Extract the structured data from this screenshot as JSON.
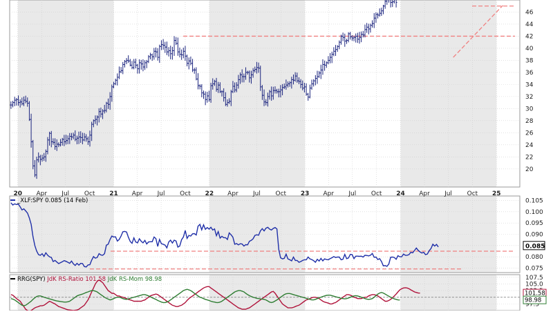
{
  "colors": {
    "price_bars": "#1a237e",
    "ratio_line": "#1f2fa8",
    "rs_ratio": "#b0123a",
    "rs_momentum": "#2e7d32",
    "support_lines": "#f08080",
    "shade": "#e9e9e9",
    "grid": "#cfcfcf",
    "axis_text": "#222222",
    "highlight_box": "#000000"
  },
  "chart_data": [
    {
      "type": "ohlc",
      "panel": "price",
      "ylim": [
        17,
        48
      ],
      "y_ticks": [
        "20",
        "22",
        "24",
        "26",
        "28",
        "30",
        "32",
        "34",
        "36",
        "38",
        "40",
        "42",
        "44",
        "46"
      ],
      "x_tick_labels": [
        "20",
        "Apr",
        "Jul",
        "Oct",
        "21",
        "Apr",
        "Jul",
        "Oct",
        "22",
        "Apr",
        "Jul",
        "Oct",
        "23",
        "Apr",
        "Jul",
        "Oct",
        "24",
        "Apr",
        "Jul",
        "Oct",
        "25"
      ],
      "x_range": [
        "2019-12-01",
        "2025-03-31"
      ],
      "weekly_closes": {
        "start": "2019-12-06",
        "step_days": 7,
        "values": [
          30.6,
          31.0,
          31.4,
          31.5,
          31.0,
          31.1,
          30.8,
          31.4,
          31.2,
          30.9,
          28.2,
          24.5,
          20.5,
          19.0,
          21.5,
          22.0,
          21.6,
          21.8,
          22.0,
          22.9,
          24.8,
          25.9,
          24.5,
          24.4,
          23.7,
          24.1,
          24.0,
          24.4,
          24.9,
          24.5,
          24.7,
          25.0,
          25.4,
          25.3,
          25.6,
          24.9,
          25.1,
          25.3,
          25.2,
          24.8,
          25.3,
          25.0,
          24.5,
          25.6,
          27.4,
          28.0,
          28.2,
          28.6,
          29.5,
          29.1,
          29.6,
          29.7,
          30.9,
          30.7,
          32.0,
          33.6,
          34.1,
          34.7,
          35.2,
          36.1,
          36.3,
          37.3,
          37.8,
          38.0,
          37.9,
          37.2,
          36.8,
          37.7,
          37.2,
          36.6,
          37.6,
          37.4,
          36.9,
          37.6,
          37.8,
          38.6,
          38.9,
          38.6,
          39.5,
          39.4,
          38.5,
          40.3,
          40.6,
          40.5,
          40.2,
          39.4,
          39.6,
          39.1,
          39.6,
          41.3,
          40.8,
          39.4,
          39.0,
          38.9,
          39.5,
          38.7,
          37.5,
          37.9,
          37.5,
          36.4,
          36.4,
          34.9,
          33.8,
          33.7,
          32.6,
          32.4,
          31.5,
          32.1,
          31.5,
          33.8,
          34.1,
          34.5,
          33.2,
          33.9,
          32.8,
          32.8,
          31.8,
          30.7,
          31.0,
          31.2,
          32.8,
          33.7,
          33.1,
          33.9,
          34.8,
          35.6,
          35.3,
          35.3,
          36.0,
          36.0,
          35.1,
          35.6,
          36.3,
          36.5,
          36.8,
          36.7,
          33.6,
          32.2,
          31.1,
          31.0,
          32.0,
          32.8,
          32.1,
          33.0,
          33.0,
          32.8,
          32.8,
          33.1,
          33.5,
          33.6,
          33.9,
          34.1,
          34.3,
          34.8,
          34.7,
          35.4,
          34.6,
          34.5,
          34.0,
          33.4,
          33.6,
          32.4,
          31.9,
          33.4,
          34.1,
          34.6,
          35.0,
          35.3,
          35.9,
          36.4,
          37.3,
          37.2,
          37.6,
          38.0,
          38.5,
          39.0,
          39.5,
          39.8,
          40.3,
          41.0,
          42.0,
          41.8,
          41.2,
          41.3,
          42.4,
          41.9,
          41.7,
          41.8,
          42.0,
          41.5,
          41.8,
          42.3,
          42.2,
          43.1,
          43.5,
          43.2,
          43.8,
          44.1,
          45.0,
          45.6,
          45.5,
          45.8,
          46.2,
          47.0,
          47.8,
          48.2,
          48.5,
          47.6,
          47.7,
          48.9,
          47.6
        ]
      },
      "horizontal_lines": [
        42.0,
        47.0
      ],
      "trendline": {
        "from": [
          "2024-07-20",
          38.5
        ],
        "to": [
          "2025-01-25",
          47.1
        ]
      }
    },
    {
      "type": "line",
      "panel": "relative",
      "legend": "_XLF:SPY 0.085 (14 Feb)",
      "ylim": [
        0.073,
        0.107
      ],
      "y_ticks": [
        "0.075",
        "0.080",
        "0.085",
        "0.090",
        "0.095",
        "0.100",
        "0.105"
      ],
      "last_value": "0.085",
      "series": [
        {
          "start": "2019-12-06",
          "step_days": 7,
          "values": [
            0.104,
            0.103,
            0.1035,
            0.1032,
            0.1034,
            0.1022,
            0.1008,
            0.1013,
            0.1004,
            0.0994,
            0.0973,
            0.0944,
            0.089,
            0.085,
            0.0826,
            0.081,
            0.0807,
            0.0814,
            0.0802,
            0.0818,
            0.0807,
            0.08,
            0.0797,
            0.0779,
            0.0784,
            0.0777,
            0.077,
            0.0774,
            0.0778,
            0.0783,
            0.078,
            0.0776,
            0.0771,
            0.0781,
            0.0769,
            0.0762,
            0.0771,
            0.0763,
            0.0771,
            0.077,
            0.0757,
            0.0755,
            0.0764,
            0.0765,
            0.0785,
            0.0801,
            0.0794,
            0.0797,
            0.0814,
            0.0808,
            0.0807,
            0.0814,
            0.0852,
            0.0856,
            0.0877,
            0.0892,
            0.0888,
            0.0889,
            0.087,
            0.0877,
            0.0892,
            0.0911,
            0.0913,
            0.091,
            0.0887,
            0.0868,
            0.086,
            0.0884,
            0.0866,
            0.0862,
            0.088,
            0.0869,
            0.0862,
            0.0873,
            0.0857,
            0.0866,
            0.0867,
            0.0867,
            0.0888,
            0.0881,
            0.0846,
            0.0877,
            0.0858,
            0.0856,
            0.0852,
            0.084,
            0.0866,
            0.0874,
            0.0861,
            0.0874,
            0.087,
            0.0843,
            0.0848,
            0.0876,
            0.0888,
            0.0917,
            0.0882,
            0.0895,
            0.0892,
            0.0902,
            0.0903,
            0.0897,
            0.0936,
            0.0944,
            0.092,
            0.0942,
            0.0922,
            0.093,
            0.0923,
            0.0931,
            0.0919,
            0.0924,
            0.0894,
            0.0912,
            0.0883,
            0.0891,
            0.0885,
            0.0885,
            0.0877,
            0.0906,
            0.0898,
            0.0887,
            0.0856,
            0.0859,
            0.0853,
            0.0858,
            0.0857,
            0.0848,
            0.0854,
            0.0853,
            0.0869,
            0.0873,
            0.088,
            0.0895,
            0.0898,
            0.0896,
            0.0915,
            0.0925,
            0.0915,
            0.0927,
            0.0931,
            0.0923,
            0.0919,
            0.0926,
            0.093,
            0.0924,
            0.0832,
            0.0796,
            0.0791,
            0.0793,
            0.0812,
            0.0791,
            0.0787,
            0.0782,
            0.0799,
            0.0784,
            0.0784,
            0.0776,
            0.0779,
            0.0784,
            0.0787,
            0.0787,
            0.0799,
            0.0791,
            0.0788,
            0.0783,
            0.0776,
            0.0789,
            0.0781,
            0.0793,
            0.0782,
            0.0791,
            0.0788,
            0.0787,
            0.0792,
            0.0796,
            0.0801,
            0.0797,
            0.0799,
            0.0799,
            0.0787,
            0.0789,
            0.0811,
            0.0792,
            0.0795,
            0.0811,
            0.081,
            0.0792,
            0.0803,
            0.0803,
            0.0802,
            0.0803,
            0.0799,
            0.0807,
            0.0806,
            0.0804,
            0.0807,
            0.0815,
            0.0798,
            0.0799,
            0.0788,
            0.0792,
            0.0779,
            0.076,
            0.0761,
            0.0758,
            0.0768,
            0.0798,
            0.0799,
            0.0797,
            0.0789,
            0.0805,
            0.08,
            0.08,
            0.0812,
            0.0807,
            0.0807,
            0.081,
            0.082,
            0.0818,
            0.0828,
            0.0839,
            0.0829,
            0.0822,
            0.0817,
            0.082,
            0.081,
            0.0812,
            0.0827,
            0.0837,
            0.0856,
            0.0848,
            0.0855,
            0.0844
          ]
        }
      ],
      "horizontal_lines": [
        0.0825,
        0.0746
      ]
    },
    {
      "type": "line",
      "panel": "rrg",
      "legend_prefix": "RRG(SPY)",
      "ylim": [
        95,
        108.5
      ],
      "y_ticks": [
        "107.5",
        "105.0",
        "102.5",
        "100.0",
        "97.5"
      ],
      "series": [
        {
          "name": "JdK RS-Ratio 101.58",
          "start": "2019-12-06",
          "step_days": 7,
          "values": [
            101.0,
            100.8,
            100.2,
            99.5,
            99.0,
            98.5,
            97.5,
            96.5,
            95.5,
            95.0,
            94.8,
            95.0,
            95.5,
            96.0,
            96.3,
            96.5,
            96.8,
            96.8,
            97.0,
            97.5,
            98.0,
            98.5,
            98.2,
            97.8,
            97.5,
            97.0,
            96.5,
            96.3,
            96.0,
            95.8,
            95.5,
            95.3,
            95.2,
            95.1,
            95.0,
            95.1,
            95.2,
            95.5,
            96.0,
            96.5,
            97.0,
            98.0,
            99.0,
            100.5,
            102.0,
            103.5,
            105.0,
            106.0,
            106.5,
            106.0,
            105.5,
            104.5,
            103.5,
            102.5,
            102.0,
            101.5,
            101.5,
            101.0,
            100.5,
            100.5,
            100.2,
            100.0,
            99.8,
            99.5,
            99.2,
            99.0,
            98.8,
            98.5,
            98.5,
            98.5,
            98.5,
            98.5,
            98.8,
            99.0,
            99.5,
            100.0,
            100.5,
            100.8,
            101.0,
            101.2,
            101.0,
            100.5,
            100.0,
            99.5,
            99.0,
            98.5,
            98.0,
            97.5,
            97.0,
            96.8,
            96.5,
            96.5,
            96.8,
            97.0,
            97.5,
            98.0,
            98.8,
            99.5,
            100.0,
            100.5,
            101.0,
            101.5,
            102.0,
            102.5,
            103.0,
            103.5,
            103.8,
            104.0,
            104.0,
            103.5,
            103.0,
            102.5,
            102.0,
            101.5,
            101.0,
            100.5,
            100.0,
            99.5,
            99.0,
            98.5,
            98.0,
            97.5,
            97.0,
            96.5,
            96.0,
            95.8,
            95.5,
            95.5,
            95.5,
            95.8,
            96.0,
            96.5,
            97.0,
            97.5,
            98.0,
            98.5,
            99.0,
            99.5,
            100.0,
            100.5,
            101.0,
            101.5,
            102.0,
            102.2,
            101.5,
            100.5,
            99.5,
            98.5,
            97.5,
            97.0,
            96.5,
            96.0,
            96.0,
            96.0,
            96.2,
            96.5,
            96.8,
            97.0,
            97.5,
            98.0,
            98.5,
            99.0,
            99.2,
            99.5,
            99.8,
            100.0,
            100.0,
            99.8,
            99.5,
            99.0,
            98.5,
            98.2,
            98.0,
            97.8,
            97.5,
            97.5,
            97.8,
            98.0,
            98.5,
            99.0,
            99.5,
            100.0,
            100.5,
            101.0,
            101.0,
            100.8,
            100.5,
            100.0,
            99.8,
            99.5,
            99.5,
            99.5,
            99.8,
            100.0,
            100.0,
            100.5,
            100.8,
            101.0,
            101.0,
            100.8,
            100.5,
            100.0,
            99.5,
            99.0,
            98.5,
            98.5,
            98.8,
            99.2,
            99.8,
            100.5,
            101.2,
            102.0,
            102.8,
            103.2,
            103.5,
            103.6,
            103.5,
            103.2,
            102.8,
            102.4,
            102.0,
            101.8,
            101.6,
            101.58
          ]
        },
        {
          "name": "JdK RS-Mom 98.98",
          "start": "2019-12-06",
          "step_days": 7,
          "values": [
            99.5,
            99.3,
            99.0,
            98.5,
            98.0,
            97.5,
            97.0,
            96.8,
            97.0,
            97.5,
            98.0,
            98.5,
            99.2,
            99.8,
            100.3,
            100.5,
            100.5,
            100.3,
            100.0,
            99.8,
            99.6,
            99.4,
            99.2,
            99.0,
            98.8,
            98.6,
            98.5,
            98.4,
            98.3,
            98.2,
            98.2,
            98.3,
            98.5,
            99.0,
            99.5,
            100.0,
            100.5,
            100.8,
            101.0,
            101.2,
            101.5,
            101.8,
            102.0,
            102.3,
            102.5,
            102.5,
            102.3,
            102.0,
            101.5,
            101.0,
            100.5,
            100.0,
            99.6,
            99.3,
            99.0,
            99.2,
            99.5,
            99.8,
            100.0,
            100.0,
            99.8,
            99.5,
            99.3,
            99.2,
            99.4,
            99.6,
            99.8,
            100.0,
            100.2,
            100.4,
            100.6,
            100.8,
            101.0,
            101.0,
            100.8,
            100.5,
            100.2,
            99.8,
            99.5,
            99.2,
            98.8,
            98.5,
            98.2,
            98.0,
            98.0,
            98.2,
            98.5,
            99.0,
            99.5,
            100.0,
            100.5,
            101.0,
            101.5,
            102.0,
            102.5,
            102.8,
            103.0,
            102.8,
            102.5,
            102.0,
            101.5,
            101.0,
            100.5,
            100.0,
            99.8,
            99.5,
            99.2,
            99.0,
            98.8,
            98.5,
            98.3,
            98.2,
            98.0,
            98.0,
            98.2,
            98.5,
            99.0,
            99.5,
            100.0,
            100.5,
            101.0,
            101.5,
            102.0,
            102.3,
            102.5,
            102.5,
            102.3,
            102.0,
            101.5,
            101.0,
            100.6,
            100.3,
            100.0,
            99.8,
            99.6,
            99.5,
            99.4,
            99.3,
            99.2,
            99.0,
            98.6,
            98.2,
            98.0,
            98.2,
            98.6,
            99.0,
            99.5,
            100.0,
            100.5,
            101.0,
            101.3,
            101.4,
            101.4,
            101.2,
            101.0,
            100.8,
            100.6,
            100.4,
            100.2,
            100.0,
            99.8,
            99.6,
            99.4,
            99.2,
            99.0,
            99.0,
            99.2,
            99.5,
            99.8,
            100.0,
            100.3,
            100.5,
            100.7,
            100.8,
            100.8,
            100.6,
            100.4,
            100.2,
            100.0,
            99.8,
            99.6,
            99.5,
            99.4,
            99.5,
            99.7,
            100.0,
            100.3,
            100.5,
            100.6,
            100.5,
            100.3,
            100.0,
            99.8,
            99.5,
            99.3,
            99.2,
            99.3,
            99.5,
            100.0,
            100.6,
            101.2,
            101.6,
            101.8,
            101.6,
            101.2,
            100.8,
            100.4,
            100.0,
            99.7,
            99.4,
            99.2,
            99.0,
            98.98
          ]
        }
      ],
      "last_labels": [
        "101.58",
        "98.98"
      ]
    }
  ]
}
